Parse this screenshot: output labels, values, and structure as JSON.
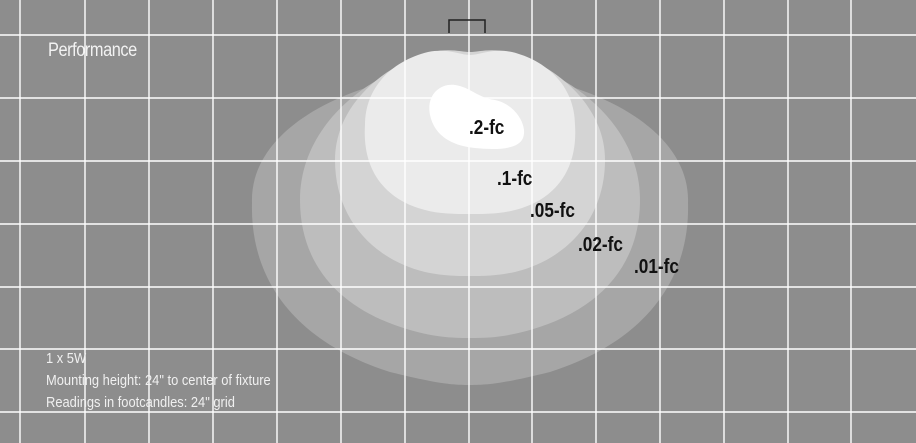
{
  "title": "Performance",
  "contours": [
    {
      "label": ".2-fc",
      "fill": "#ffffff"
    },
    {
      "label": ".1-fc",
      "fill": "#ebebeb"
    },
    {
      "label": ".05-fc",
      "fill": "#d4d4d4"
    },
    {
      "label": ".02-fc",
      "fill": "#bdbdbd"
    },
    {
      "label": ".01-fc",
      "fill": "#a6a6a6"
    }
  ],
  "notes": {
    "line1": "1 x 5W",
    "line2": "Mounting height: 24\" to center of fixture",
    "line3": "Readings in footcandles: 24\" grid"
  },
  "colors": {
    "background": "#8d8d8d",
    "grid": "#ffffff",
    "fixture": "#222222"
  }
}
